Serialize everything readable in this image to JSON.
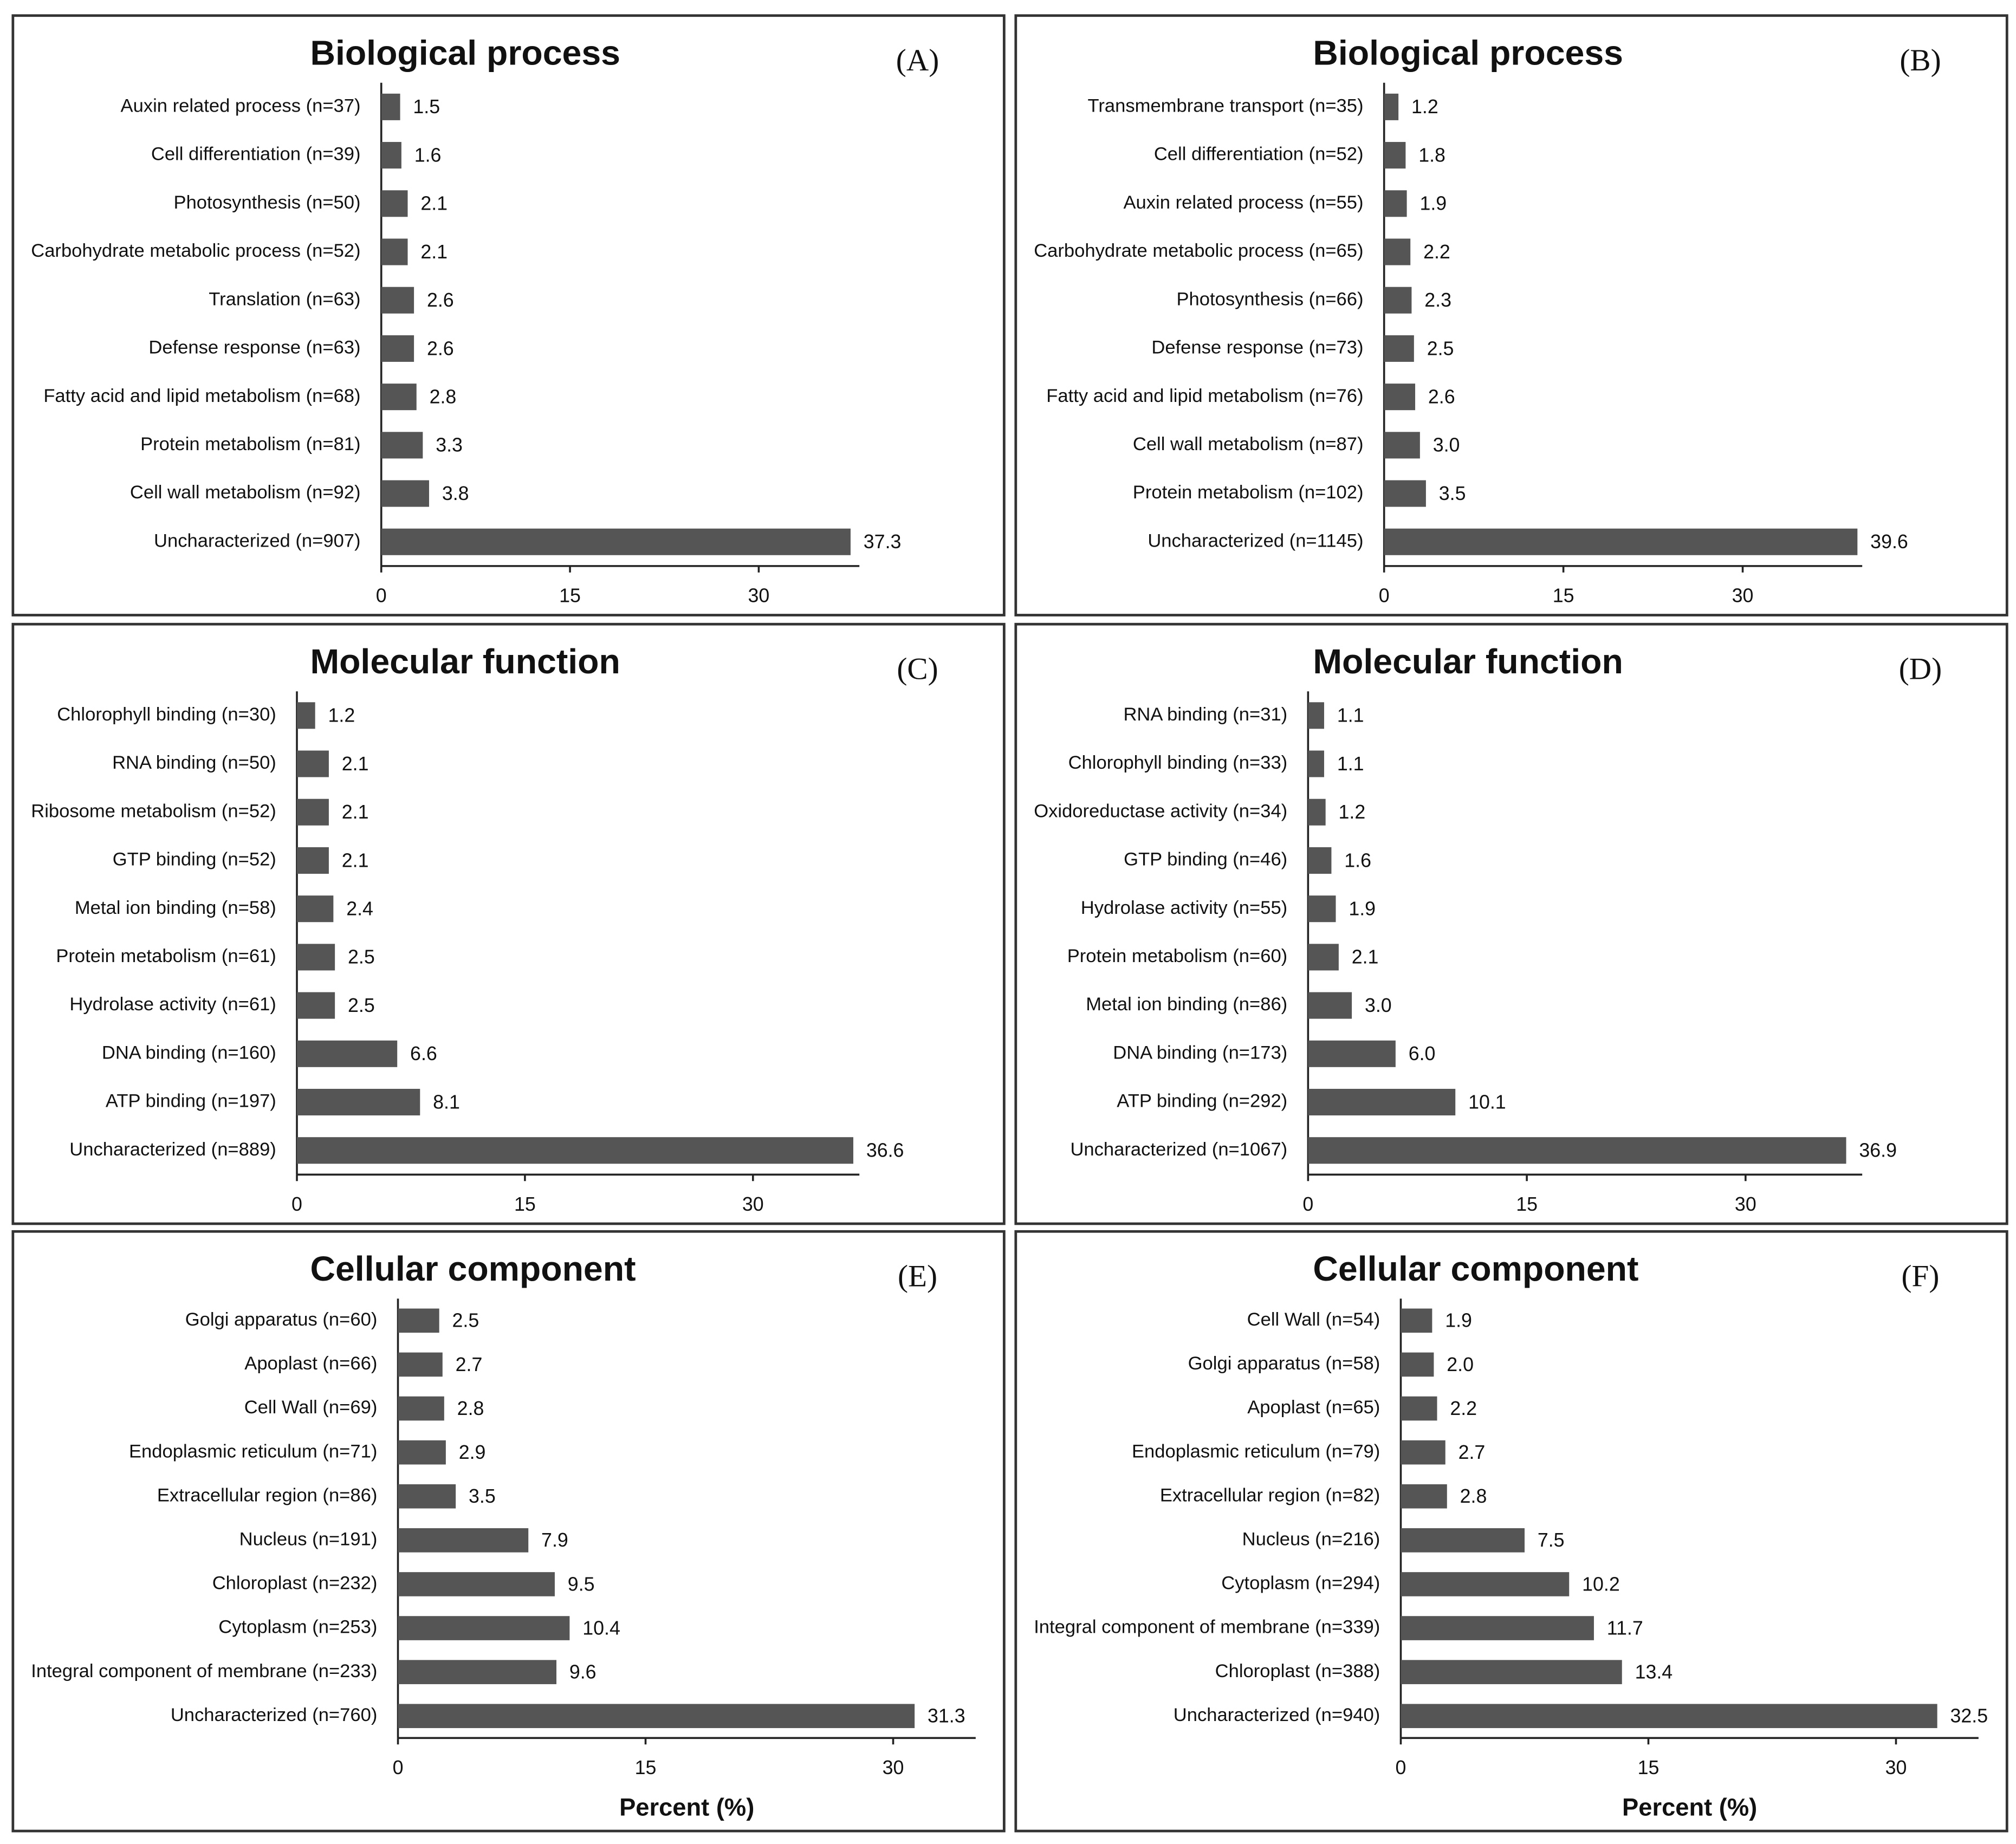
{
  "chart_data": [
    {
      "type": "bar",
      "orientation": "horizontal",
      "title": "Biological process",
      "panel_label": "(A)",
      "categories": [
        "Auxin related process (n=37)",
        "Cell differentiation (n=39)",
        "Photosynthesis (n=50)",
        "Carbohydrate metabolic process (n=52)",
        "Translation (n=63)",
        "Defense response (n=63)",
        "Fatty acid and lipid metabolism (n=68)",
        "Protein metabolism (n=81)",
        "Cell wall metabolism (n=92)",
        "Uncharacterized (n=907)"
      ],
      "values": [
        1.5,
        1.6,
        2.1,
        2.1,
        2.6,
        2.6,
        2.8,
        3.3,
        3.8,
        37.3
      ],
      "value_labels": [
        "1.5",
        "1.6",
        "2.1",
        "2.1",
        "2.6",
        "2.6",
        "2.8",
        "3.3",
        "3.8",
        "37.3"
      ],
      "color": "#555555",
      "xlim": [
        0,
        38
      ],
      "xticks": [
        0,
        15,
        30
      ]
    },
    {
      "type": "bar",
      "orientation": "horizontal",
      "title": "Biological process",
      "panel_label": "(B)",
      "categories": [
        "Transmembrane transport (n=35)",
        "Cell differentiation (n=52)",
        "Auxin related process (n=55)",
        "Carbohydrate metabolic process (n=65)",
        "Photosynthesis (n=66)",
        "Defense response (n=73)",
        "Fatty acid and lipid metabolism (n=76)",
        "Cell wall metabolism (n=87)",
        "Protein metabolism (n=102)",
        "Uncharacterized (n=1145)"
      ],
      "values": [
        1.2,
        1.8,
        1.9,
        2.2,
        2.3,
        2.5,
        2.6,
        3.0,
        3.5,
        39.6
      ],
      "value_labels": [
        "1.2",
        "1.8",
        "1.9",
        "2.2",
        "2.3",
        "2.5",
        "2.6",
        "3.0",
        "3.5",
        "39.6"
      ],
      "color": "#555555",
      "xlim": [
        0,
        40
      ],
      "xticks": [
        0,
        15,
        30
      ]
    },
    {
      "type": "bar",
      "orientation": "horizontal",
      "title": "Molecular function",
      "panel_label": "(C)",
      "categories": [
        "Chlorophyll binding (n=30)",
        "RNA binding (n=50)",
        "Ribosome metabolism (n=52)",
        "GTP binding (n=52)",
        "Metal ion binding (n=58)",
        "Protein metabolism (n=61)",
        "Hydrolase activity (n=61)",
        "DNA binding (n=160)",
        "ATP binding (n=197)",
        "Uncharacterized (n=889)"
      ],
      "values": [
        1.2,
        2.1,
        2.1,
        2.1,
        2.4,
        2.5,
        2.5,
        6.6,
        8.1,
        36.6
      ],
      "value_labels": [
        "1.2",
        "2.1",
        "2.1",
        "2.1",
        "2.4",
        "2.5",
        "2.5",
        "6.6",
        "8.1",
        "36.6"
      ],
      "color": "#555555",
      "xlim": [
        0,
        37
      ],
      "xticks": [
        0,
        15,
        30
      ]
    },
    {
      "type": "bar",
      "orientation": "horizontal",
      "title": "Molecular function",
      "panel_label": "(D)",
      "categories": [
        "RNA binding (n=31)",
        "Chlorophyll binding (n=33)",
        "Oxidoreductase activity (n=34)",
        "GTP binding (n=46)",
        "Hydrolase activity (n=55)",
        "Protein metabolism (n=60)",
        "Metal ion binding (n=86)",
        "DNA binding (n=173)",
        "ATP binding (n=292)",
        "Uncharacterized (n=1067)"
      ],
      "values": [
        1.1,
        1.1,
        1.2,
        1.6,
        1.9,
        2.1,
        3.0,
        6.0,
        10.1,
        36.9
      ],
      "value_labels": [
        "1.1",
        "1.1",
        "1.2",
        "1.6",
        "1.9",
        "2.1",
        "3.0",
        "6.0",
        "10.1",
        "36.9"
      ],
      "color": "#555555",
      "xlim": [
        0,
        38
      ],
      "xticks": [
        0,
        15,
        30
      ]
    },
    {
      "type": "bar",
      "orientation": "horizontal",
      "title": "Cellular component",
      "panel_label": "(E)",
      "categories": [
        "Golgi apparatus (n=60)",
        "Apoplast (n=66)",
        "Cell Wall (n=69)",
        "Endoplasmic reticulum (n=71)",
        "Extracellular region (n=86)",
        "Nucleus (n=191)",
        "Chloroplast (n=232)",
        "Cytoplasm (n=253)",
        "Integral component of membrane (n=233)",
        "Uncharacterized (n=760)"
      ],
      "values": [
        2.5,
        2.7,
        2.8,
        2.9,
        3.5,
        7.9,
        9.5,
        10.4,
        9.6,
        31.3
      ],
      "value_labels": [
        "2.5",
        "2.7",
        "2.8",
        "2.9",
        "3.5",
        "7.9",
        "9.5",
        "10.4",
        "9.6",
        "31.3"
      ],
      "color": "#555555",
      "xlim": [
        0,
        35
      ],
      "xticks": [
        0,
        15,
        30
      ],
      "xlabel": "Percent (%)"
    },
    {
      "type": "bar",
      "orientation": "horizontal",
      "title": "Cellular component",
      "panel_label": "(F)",
      "categories": [
        "Cell Wall (n=54)",
        "Golgi apparatus (n=58)",
        "Apoplast (n=65)",
        "Endoplasmic reticulum (n=79)",
        "Extracellular region (n=82)",
        "Nucleus (n=216)",
        "Cytoplasm (n=294)",
        "Integral component of membrane (n=339)",
        "Chloroplast (n=388)",
        "Uncharacterized (n=940)"
      ],
      "values": [
        1.9,
        2.0,
        2.2,
        2.7,
        2.8,
        7.5,
        10.2,
        11.7,
        13.4,
        32.5
      ],
      "value_labels": [
        "1.9",
        "2.0",
        "2.2",
        "2.7",
        "2.8",
        "7.5",
        "10.2",
        "11.7",
        "13.4",
        "32.5"
      ],
      "color": "#555555",
      "xlim": [
        0,
        35
      ],
      "xticks": [
        0,
        15,
        30
      ],
      "xlabel": "Percent (%)"
    }
  ]
}
